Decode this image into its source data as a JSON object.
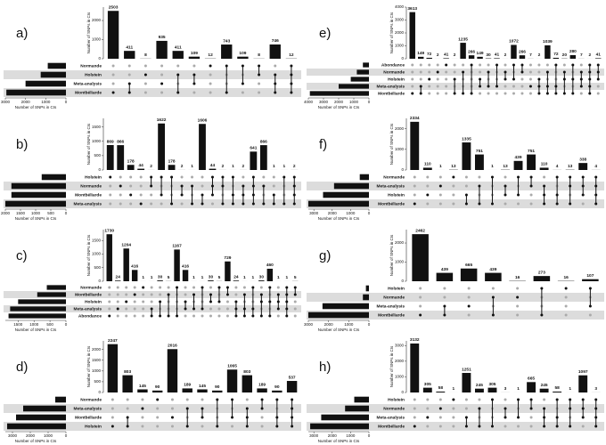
{
  "chart_data": [
    {
      "type": "upset",
      "title": "a)",
      "ylabel": "Number of SNPs in CIs",
      "xlabel": "Number of SNPs in CIs",
      "color": "#111111",
      "sets": [
        "Normande",
        "Holstein",
        "Meta-analysis",
        "Montbéliarde"
      ],
      "set_sizes": [
        900,
        1250,
        2000,
        2950
      ],
      "xlim": [
        3000,
        0
      ],
      "xticks": [
        3000,
        2000,
        1000,
        0
      ],
      "values": [
        2503,
        411,
        8,
        935,
        411,
        109,
        12,
        743,
        109,
        8,
        746,
        12
      ],
      "ylim": [
        0,
        2700
      ],
      "yticks": [
        0,
        1000,
        2000
      ],
      "members": [
        [
          3
        ],
        [
          2,
          3
        ],
        [
          1
        ],
        [
          2
        ],
        [
          1,
          3
        ],
        [
          1,
          2
        ],
        [
          0
        ],
        [
          0,
          3
        ],
        [
          0,
          2
        ],
        [
          0,
          1
        ],
        [
          1,
          2,
          3
        ],
        [
          0,
          1,
          2,
          3
        ]
      ]
    },
    {
      "type": "upset",
      "title": "e)",
      "ylabel": "Number of SNPs in CIs",
      "xlabel": "Number of SNPs in CIs",
      "color": "#111111",
      "sets": [
        "Abondance",
        "Normande",
        "Holstein",
        "Meta-analysis",
        "Montbéliarde"
      ],
      "set_sizes": [
        400,
        800,
        1200,
        2000,
        3900
      ],
      "xlim": [
        4000,
        0
      ],
      "xticks": [
        4000,
        3000,
        2000,
        1000,
        0
      ],
      "values": [
        3613,
        149,
        72,
        2,
        41,
        2,
        1235,
        266,
        149,
        30,
        41,
        2,
        1072,
        266,
        7,
        2,
        1039,
        72,
        20,
        280,
        7,
        2,
        41
      ],
      "ylim": [
        0,
        4000
      ],
      "yticks": [
        0,
        1000,
        2000,
        3000,
        4000
      ],
      "members": [
        [
          4
        ],
        [
          3,
          4
        ],
        [
          2
        ],
        [
          1
        ],
        [
          0
        ],
        [
          2,
          4
        ],
        [
          1,
          4
        ],
        [
          0,
          4
        ],
        [
          2,
          3
        ],
        [
          1,
          3
        ],
        [
          0,
          3
        ],
        [
          1,
          2
        ],
        [
          0,
          2
        ],
        [
          0,
          1
        ],
        [
          3
        ],
        [
          2,
          3,
          4
        ],
        [
          1,
          3,
          4
        ],
        [
          0,
          3,
          4
        ],
        [
          1,
          2,
          4
        ],
        [
          0,
          2,
          4
        ],
        [
          1,
          2,
          3
        ],
        [
          0,
          1,
          2,
          3,
          4
        ],
        [
          0,
          1,
          2
        ]
      ]
    },
    {
      "type": "upset",
      "title": "b)",
      "ylabel": "Number of SNPs in CIs",
      "xlabel": "Number of SNPs in CIs",
      "color": "#111111",
      "sets": [
        "Holstein",
        "Normande",
        "Montbéliarde",
        "Meta-analysis"
      ],
      "set_sizes": [
        800,
        1800,
        1800,
        2000
      ],
      "xlim": [
        2000,
        0
      ],
      "xticks": [
        2000,
        1500,
        1000,
        500,
        0
      ],
      "values": [
        869,
        866,
        178,
        44,
        2,
        1622,
        178,
        2,
        1,
        1606,
        44,
        2,
        1,
        2,
        641,
        866,
        1,
        1,
        2
      ],
      "ylim": [
        0,
        1800
      ],
      "yticks": [
        0,
        500,
        1000,
        1500
      ],
      "members": [
        [
          0
        ],
        [
          1
        ],
        [
          2
        ],
        [
          3
        ],
        [
          0,
          1
        ],
        [
          0,
          2
        ],
        [
          0,
          3
        ],
        [
          1,
          2
        ],
        [
          1,
          3
        ],
        [
          2,
          3
        ],
        [
          0,
          1,
          2
        ],
        [
          0,
          1,
          3
        ],
        [
          0,
          2,
          3
        ],
        [
          1,
          2,
          3
        ],
        [
          0,
          1,
          2,
          3
        ],
        [
          1,
          3
        ],
        [
          2,
          3
        ],
        [
          0,
          3
        ],
        [
          0,
          1,
          2,
          3
        ]
      ]
    },
    {
      "type": "upset",
      "title": "f)",
      "ylabel": "Number of SNPs in CIs",
      "xlabel": "Number of SNPs in CIs",
      "color": "#111111",
      "sets": [
        "Normande",
        "Meta-analysis",
        "Holstein",
        "Montbéliarde"
      ],
      "set_sizes": [
        500,
        1900,
        2500,
        3300
      ],
      "xlim": [
        3300,
        0
      ],
      "xticks": [
        3000,
        2000,
        1000,
        0
      ],
      "values": [
        2334,
        110,
        1,
        13,
        1335,
        751,
        1,
        13,
        439,
        751,
        110,
        4,
        13,
        338,
        4
      ],
      "ylim": [
        0,
        2500
      ],
      "yticks": [
        0,
        1000,
        2000
      ],
      "members": [
        [
          3
        ],
        [
          2
        ],
        [
          1
        ],
        [
          0
        ],
        [
          2,
          3
        ],
        [
          1,
          3
        ],
        [
          0,
          3
        ],
        [
          1,
          2
        ],
        [
          0,
          2
        ],
        [
          0,
          1
        ],
        [
          1,
          2,
          3
        ],
        [
          0,
          2,
          3
        ],
        [
          0,
          1,
          3
        ],
        [
          0,
          1,
          2
        ],
        [
          0,
          1,
          2,
          3
        ]
      ]
    },
    {
      "type": "upset",
      "title": "c)",
      "ylabel": "Number of SNPs in CIs",
      "xlabel": "Number of SNPs in CIs",
      "color": "#111111",
      "sets": [
        "Normande",
        "Montbéliarde",
        "Holstein",
        "Meta-analysis",
        "Abondance"
      ],
      "set_sizes": [
        600,
        900,
        1500,
        1750,
        1800
      ],
      "xlim": [
        1900,
        0
      ],
      "xticks": [
        1500,
        1000,
        500,
        0
      ],
      "values": [
        1730,
        24,
        1204,
        416,
        1,
        1,
        30,
        5,
        1167,
        416,
        1,
        1,
        30,
        5,
        729,
        24,
        1,
        1,
        30,
        460,
        1,
        1,
        5
      ],
      "ylim": [
        0,
        1900
      ],
      "yticks": [
        0,
        500,
        1000,
        1500
      ],
      "members": [
        [
          4
        ],
        [
          3
        ],
        [
          2
        ],
        [
          1
        ],
        [
          0
        ],
        [
          3,
          4
        ],
        [
          2,
          4
        ],
        [
          1,
          4
        ],
        [
          0,
          4
        ],
        [
          2,
          3
        ],
        [
          1,
          3
        ],
        [
          0,
          3
        ],
        [
          1,
          2
        ],
        [
          0,
          2
        ],
        [
          0,
          1
        ],
        [
          2,
          3,
          4
        ],
        [
          1,
          3,
          4
        ],
        [
          0,
          3,
          4
        ],
        [
          1,
          2,
          4
        ],
        [
          0,
          2,
          4
        ],
        [
          1,
          2,
          3
        ],
        [
          0,
          1,
          2,
          3,
          4
        ],
        [
          0,
          1
        ]
      ]
    },
    {
      "type": "upset",
      "title": "g)",
      "ylabel": "Number of SNPs in CIs",
      "xlabel": "Number of SNPs in CIs",
      "color": "#111111",
      "sets": [
        "Holstein",
        "Normande",
        "Meta-analysis",
        "Montbéliarde"
      ],
      "set_sizes": [
        150,
        300,
        2300,
        3000
      ],
      "xlim": [
        3000,
        0
      ],
      "xticks": [
        3000,
        2000,
        1000,
        0
      ],
      "values": [
        2462,
        439,
        665,
        439,
        16,
        273,
        16,
        107
      ],
      "ylim": [
        0,
        2700
      ],
      "yticks": [
        0,
        1000,
        2000
      ],
      "members": [
        [
          3
        ],
        [
          2,
          3
        ],
        [
          2
        ],
        [
          1,
          3
        ],
        [
          1
        ],
        [
          0,
          3
        ],
        [
          0
        ],
        [
          0,
          2
        ]
      ]
    },
    {
      "type": "upset",
      "title": "d)",
      "ylabel": "Number of SNPs in CIs",
      "xlabel": "Number of SNPs in CIs",
      "color": "#111111",
      "sets": [
        "Normande",
        "Meta-analysis",
        "Montbéliarde",
        "Holstein"
      ],
      "set_sizes": [
        600,
        2400,
        2800,
        3300
      ],
      "xlim": [
        3400,
        0
      ],
      "xticks": [
        3000,
        2000,
        1000,
        0
      ],
      "values": [
        2247,
        803,
        145,
        90,
        2016,
        189,
        145,
        90,
        1065,
        803,
        189,
        90,
        537
      ],
      "ylim": [
        0,
        2400
      ],
      "yticks": [
        0,
        500,
        1000,
        1500,
        2000
      ],
      "members": [
        [
          3
        ],
        [
          2,
          3
        ],
        [
          1
        ],
        [
          0
        ],
        [
          2
        ],
        [
          1,
          3
        ],
        [
          1,
          2
        ],
        [
          0,
          3
        ],
        [
          0,
          2
        ],
        [
          1,
          2,
          3
        ],
        [
          0,
          1
        ],
        [
          0,
          2,
          3
        ],
        [
          0,
          1,
          2,
          3
        ]
      ]
    },
    {
      "type": "upset",
      "title": "h)",
      "ylabel": "Number of SNPs in CIs",
      "xlabel": "Number of SNPs in CIs",
      "color": "#111111",
      "sets": [
        "Holstein",
        "Normande",
        "Meta-analysis",
        "Montbéliarde"
      ],
      "set_sizes": [
        800,
        1300,
        2600,
        3200
      ],
      "xlim": [
        3300,
        0
      ],
      "xticks": [
        3000,
        2000,
        1000,
        0
      ],
      "values": [
        3132,
        305,
        58,
        1,
        1251,
        245,
        305,
        3,
        1,
        665,
        245,
        58,
        1,
        1097,
        3
      ],
      "ylim": [
        0,
        3300
      ],
      "yticks": [
        0,
        1000,
        2000,
        3000
      ],
      "members": [
        [
          3
        ],
        [
          2
        ],
        [
          1
        ],
        [
          0
        ],
        [
          2,
          3
        ],
        [
          1,
          3
        ],
        [
          0,
          3
        ],
        [
          1,
          2
        ],
        [
          0,
          2
        ],
        [
          0,
          1
        ],
        [
          1,
          2,
          3
        ],
        [
          0,
          2,
          3
        ],
        [
          0,
          1,
          3
        ],
        [
          0,
          1,
          2
        ],
        [
          0,
          1,
          2,
          3
        ]
      ]
    }
  ]
}
